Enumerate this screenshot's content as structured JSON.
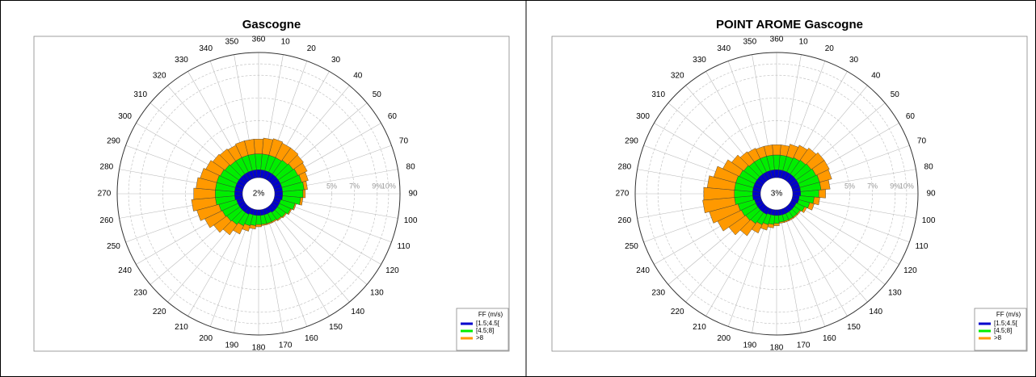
{
  "chart_data": [
    {
      "type": "windrose",
      "title": "Gascogne",
      "directions": [
        10,
        20,
        30,
        40,
        50,
        60,
        70,
        80,
        90,
        100,
        110,
        120,
        130,
        140,
        150,
        160,
        170,
        180,
        190,
        200,
        210,
        220,
        230,
        240,
        250,
        260,
        270,
        280,
        290,
        300,
        310,
        320,
        330,
        340,
        350,
        360
      ],
      "calm": {
        "value": 2,
        "label": "2%"
      },
      "rlim": [
        0,
        11
      ],
      "rticks": [
        {
          "value": 5,
          "label": "5%"
        },
        {
          "value": 7,
          "label": "7%"
        },
        {
          "value": 9,
          "label": "9%"
        },
        {
          "value": 10,
          "label": "10%"
        }
      ],
      "legend_title": "FF (m/s)",
      "legend": "lower right",
      "grid": true,
      "series": [
        {
          "name": "[1.5;4.5[",
          "color": "#0000cc",
          "values": [
            0.7,
            0.7,
            0.7,
            0.7,
            0.7,
            0.7,
            0.7,
            0.7,
            0.7,
            0.7,
            0.6,
            0.6,
            0.6,
            0.6,
            0.5,
            0.5,
            0.5,
            0.5,
            0.5,
            0.5,
            0.6,
            0.6,
            0.6,
            0.6,
            0.6,
            0.7,
            0.7,
            0.7,
            0.7,
            0.7,
            0.7,
            0.7,
            0.7,
            0.7,
            0.7,
            0.7
          ]
        },
        {
          "name": "[4.5;8]",
          "color": "#00ee00",
          "values": [
            1.4,
            1.4,
            1.4,
            1.5,
            1.6,
            1.7,
            1.8,
            1.9,
            1.8,
            1.6,
            1.3,
            1.1,
            0.9,
            0.8,
            0.8,
            0.8,
            0.8,
            0.8,
            0.9,
            1.0,
            1.1,
            1.3,
            1.4,
            1.5,
            1.6,
            1.7,
            1.7,
            1.7,
            1.7,
            1.6,
            1.5,
            1.4,
            1.4,
            1.4,
            1.4,
            1.4
          ]
        },
        {
          "name": ">8",
          "color": "#ff9900",
          "values": [
            1.4,
            1.5,
            1.4,
            1.3,
            1.1,
            0.9,
            0.6,
            0.3,
            0.2,
            0.2,
            0.1,
            0.1,
            0.1,
            0.1,
            0.1,
            0.1,
            0.1,
            0.2,
            0.3,
            0.5,
            0.8,
            1.1,
            1.4,
            1.7,
            2.0,
            2.1,
            1.9,
            1.7,
            1.5,
            1.4,
            1.3,
            1.3,
            1.2,
            1.3,
            1.3,
            1.3
          ]
        }
      ]
    },
    {
      "type": "windrose",
      "title": "POINT AROME Gascogne",
      "directions": [
        10,
        20,
        30,
        40,
        50,
        60,
        70,
        80,
        90,
        100,
        110,
        120,
        130,
        140,
        150,
        160,
        170,
        180,
        190,
        200,
        210,
        220,
        230,
        240,
        250,
        260,
        270,
        280,
        290,
        300,
        310,
        320,
        330,
        340,
        350,
        360
      ],
      "calm": {
        "value": 3,
        "label": "3%"
      },
      "rlim": [
        0,
        11
      ],
      "rticks": [
        {
          "value": 5,
          "label": "5%"
        },
        {
          "value": 7,
          "label": "7%"
        },
        {
          "value": 9,
          "label": "9%"
        },
        {
          "value": 10,
          "label": "10%"
        }
      ],
      "legend_title": "FF (m/s)",
      "legend": "lower right",
      "grid": true,
      "series": [
        {
          "name": "[1.5;4.5[",
          "color": "#0000cc",
          "values": [
            0.7,
            0.7,
            0.7,
            0.7,
            0.7,
            0.7,
            0.7,
            0.7,
            0.7,
            0.6,
            0.6,
            0.5,
            0.5,
            0.5,
            0.5,
            0.5,
            0.5,
            0.5,
            0.5,
            0.5,
            0.6,
            0.6,
            0.6,
            0.6,
            0.6,
            0.7,
            0.7,
            0.7,
            0.7,
            0.7,
            0.7,
            0.7,
            0.7,
            0.7,
            0.7,
            0.7
          ]
        },
        {
          "name": "[4.5;8]",
          "color": "#00ee00",
          "values": [
            1.3,
            1.3,
            1.4,
            1.5,
            1.6,
            1.7,
            1.8,
            1.8,
            1.6,
            1.3,
            1.0,
            0.8,
            0.6,
            0.6,
            0.6,
            0.6,
            0.6,
            0.7,
            0.8,
            0.9,
            1.0,
            1.2,
            1.3,
            1.4,
            1.5,
            1.6,
            1.6,
            1.6,
            1.6,
            1.5,
            1.4,
            1.3,
            1.3,
            1.3,
            1.3,
            1.3
          ]
        },
        {
          "name": ">8",
          "color": "#ff9900",
          "values": [
            0.9,
            1.1,
            1.2,
            1.3,
            1.4,
            1.3,
            1.1,
            0.8,
            0.6,
            0.5,
            0.4,
            0.2,
            0.1,
            0.1,
            0.1,
            0.1,
            0.1,
            0.2,
            0.3,
            0.5,
            0.8,
            1.3,
            1.8,
            2.3,
            2.6,
            2.8,
            2.7,
            2.4,
            2.0,
            1.6,
            1.3,
            1.1,
            1.0,
            0.9,
            0.9,
            0.9
          ]
        }
      ]
    }
  ]
}
